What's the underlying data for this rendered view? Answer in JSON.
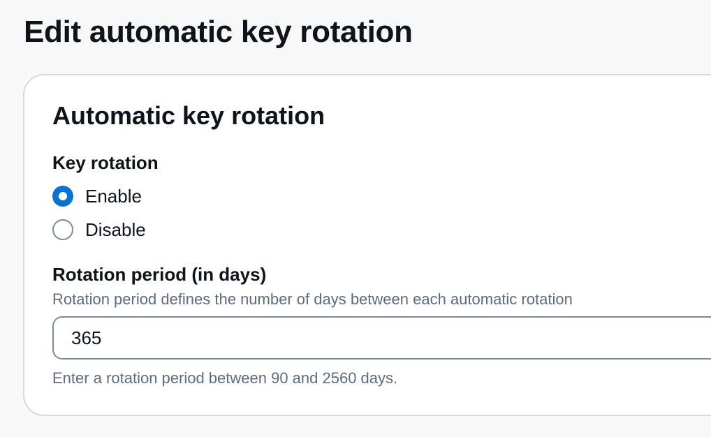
{
  "page": {
    "title": "Edit automatic key rotation"
  },
  "panel": {
    "title": "Automatic key rotation",
    "key_rotation": {
      "label": "Key rotation",
      "options": [
        {
          "label": "Enable",
          "selected": true
        },
        {
          "label": "Disable",
          "selected": false
        }
      ]
    },
    "rotation_period": {
      "label": "Rotation period (in days)",
      "description": "Rotation period defines the number of days between each automatic rotation",
      "value": "365",
      "constraint": "Enter a rotation period between 90 and 2560 days."
    }
  },
  "colors": {
    "accent": "#0972d3",
    "text_primary": "#0f141a",
    "text_secondary": "#5f6b7a",
    "border": "#7d8998",
    "panel_border": "#d5dbdb",
    "background": "#f8f8f8"
  },
  "icons": {
    "selected_radio": "radio-checked-icon",
    "unselected_radio": "radio-unchecked-icon"
  }
}
